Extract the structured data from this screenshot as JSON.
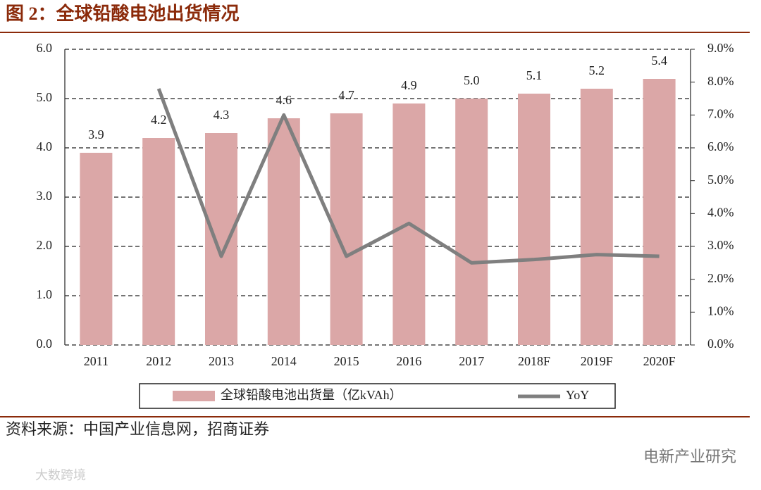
{
  "title": "图 2：全球铅酸电池出货情况",
  "source": "资料来源：中国产业信息网，招商证券",
  "watermarks": [
    "电新产业研究",
    "大数跨境"
  ],
  "chart_data": {
    "type": "bar_line",
    "categories": [
      "2011",
      "2012",
      "2013",
      "2014",
      "2015",
      "2016",
      "2017",
      "2018F",
      "2019F",
      "2020F"
    ],
    "series": [
      {
        "name": "全球铅酸电池出货量（亿kVAh）",
        "type": "bar",
        "color": "#dba7a7",
        "values": [
          3.9,
          4.2,
          4.3,
          4.6,
          4.7,
          4.9,
          5.0,
          5.1,
          5.2,
          5.4
        ],
        "value_labels": [
          "3.9",
          "4.2",
          "4.3",
          "4.6",
          "4.7",
          "4.9",
          "5.0",
          "5.1",
          "5.2",
          "5.4"
        ]
      },
      {
        "name": "YoY",
        "type": "line",
        "color": "#7f7f7f",
        "axis": "y2",
        "values": [
          null,
          7.8,
          2.7,
          7.0,
          2.7,
          3.7,
          2.5,
          2.6,
          2.75,
          2.7
        ]
      }
    ],
    "ylim": [
      0,
      6
    ],
    "yticks": [
      {
        "value": 0,
        "label": "0.0"
      },
      {
        "value": 1,
        "label": "1.0"
      },
      {
        "value": 2,
        "label": "2.0"
      },
      {
        "value": 3,
        "label": "3.0"
      },
      {
        "value": 4,
        "label": "4.0"
      },
      {
        "value": 5,
        "label": "5.0"
      },
      {
        "value": 6,
        "label": "6.0"
      }
    ],
    "y2lim": [
      0,
      9
    ],
    "y2ticks": [
      {
        "value": 0,
        "label": "0.0%"
      },
      {
        "value": 1,
        "label": "1.0%"
      },
      {
        "value": 2,
        "label": "2.0%"
      },
      {
        "value": 3,
        "label": "3.0%"
      },
      {
        "value": 4,
        "label": "4.0%"
      },
      {
        "value": 5,
        "label": "5.0%"
      },
      {
        "value": 6,
        "label": "6.0%"
      },
      {
        "value": 7,
        "label": "7.0%"
      },
      {
        "value": 8,
        "label": "8.0%"
      },
      {
        "value": 9,
        "label": "9.0%"
      }
    ],
    "grid": true,
    "legend": "bottom"
  }
}
